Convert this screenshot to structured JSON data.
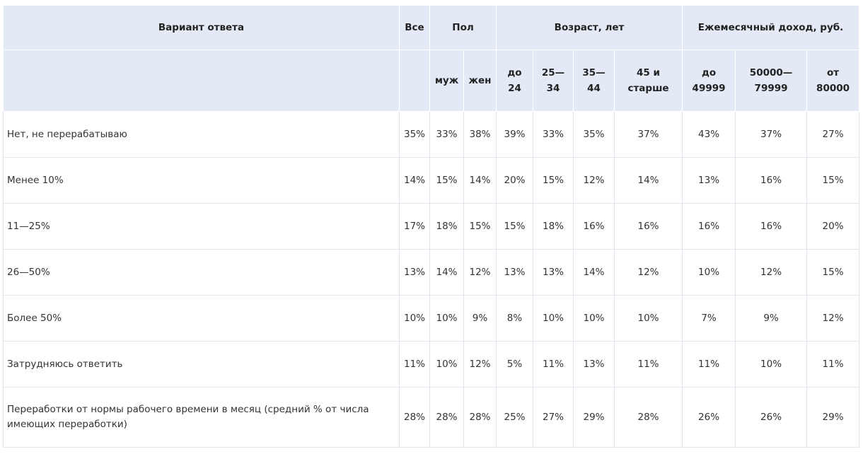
{
  "header": {
    "answer": "Вариант ответа",
    "all": "Все",
    "gender": "Пол",
    "age": "Возраст, лет",
    "income": "Ежемесячный доход, руб.",
    "sub": [
      "муж",
      "жен",
      "до 24",
      "25— 34",
      "35— 44",
      "45 и старше",
      "до 49999",
      "50000— 79999",
      "от 80000"
    ]
  },
  "rows": [
    {
      "label": "Нет, не перерабатываю",
      "values": [
        "35%",
        "33%",
        "38%",
        "39%",
        "33%",
        "35%",
        "37%",
        "43%",
        "37%",
        "27%"
      ]
    },
    {
      "label": "Менее 10%",
      "values": [
        "14%",
        "15%",
        "14%",
        "20%",
        "15%",
        "12%",
        "14%",
        "13%",
        "16%",
        "15%"
      ]
    },
    {
      "label": "11—25%",
      "values": [
        "17%",
        "18%",
        "15%",
        "15%",
        "18%",
        "16%",
        "16%",
        "16%",
        "16%",
        "20%"
      ]
    },
    {
      "label": "26—50%",
      "values": [
        "13%",
        "14%",
        "12%",
        "13%",
        "13%",
        "14%",
        "12%",
        "10%",
        "12%",
        "15%"
      ]
    },
    {
      "label": "Более 50%",
      "values": [
        "10%",
        "10%",
        "9%",
        "8%",
        "10%",
        "10%",
        "10%",
        "7%",
        "9%",
        "12%"
      ]
    },
    {
      "label": "Затрудняюсь ответить",
      "values": [
        "11%",
        "10%",
        "12%",
        "5%",
        "11%",
        "13%",
        "11%",
        "11%",
        "10%",
        "11%"
      ]
    },
    {
      "label": "Переработки от нормы рабочего времени в месяц (средний % от числа имеющих переработки)",
      "values": [
        "28%",
        "28%",
        "28%",
        "25%",
        "27%",
        "29%",
        "28%",
        "26%",
        "26%",
        "29%"
      ]
    }
  ]
}
